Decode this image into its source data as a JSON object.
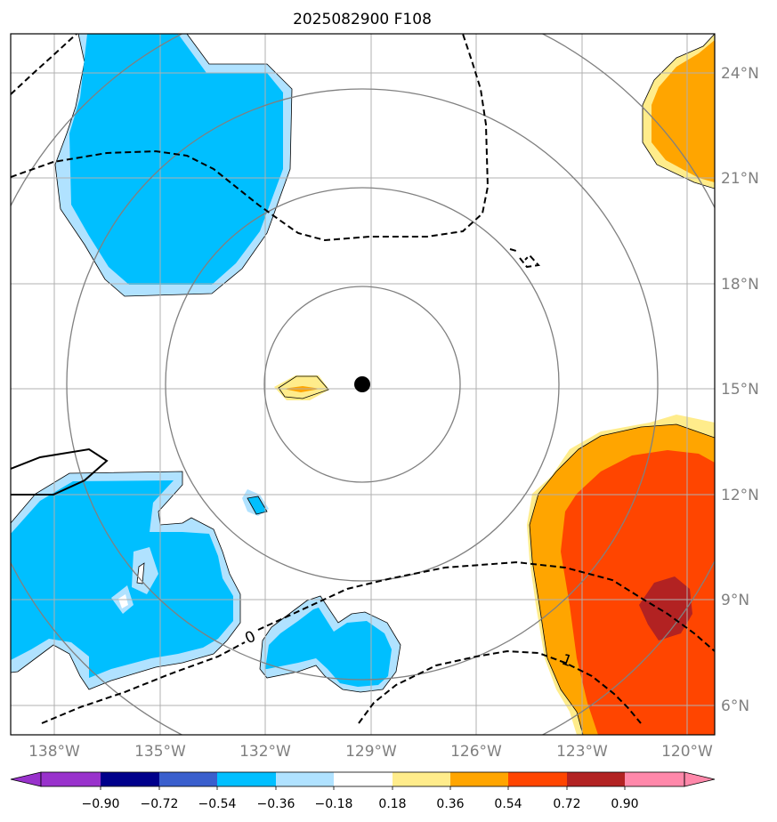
{
  "title": "2025082900 F108",
  "longitude_labels": [
    "138°W",
    "135°W",
    "132°W",
    "129°W",
    "126°W",
    "123°W",
    "120°W"
  ],
  "latitude_labels": [
    "24°N",
    "21°N",
    "18°N",
    "15°N",
    "12°N",
    "9°N",
    "6°N"
  ],
  "colorbar": {
    "labels": [
      "−0.90",
      "−0.72",
      "−0.54",
      "−0.36",
      "−0.18",
      "0.18",
      "0.36",
      "0.54",
      "0.72",
      "0.90"
    ],
    "colors": [
      "#9932cc",
      "#00008b",
      "#3a5fcd",
      "#00bfff",
      "#b0e2ff",
      "#ffffff",
      "#ffec8b",
      "#ffa500",
      "#ff4500",
      "#b22222",
      "#ff88aa"
    ]
  },
  "contour_labels": [
    "0",
    "1"
  ],
  "storm_center_marker": "black-dot"
}
